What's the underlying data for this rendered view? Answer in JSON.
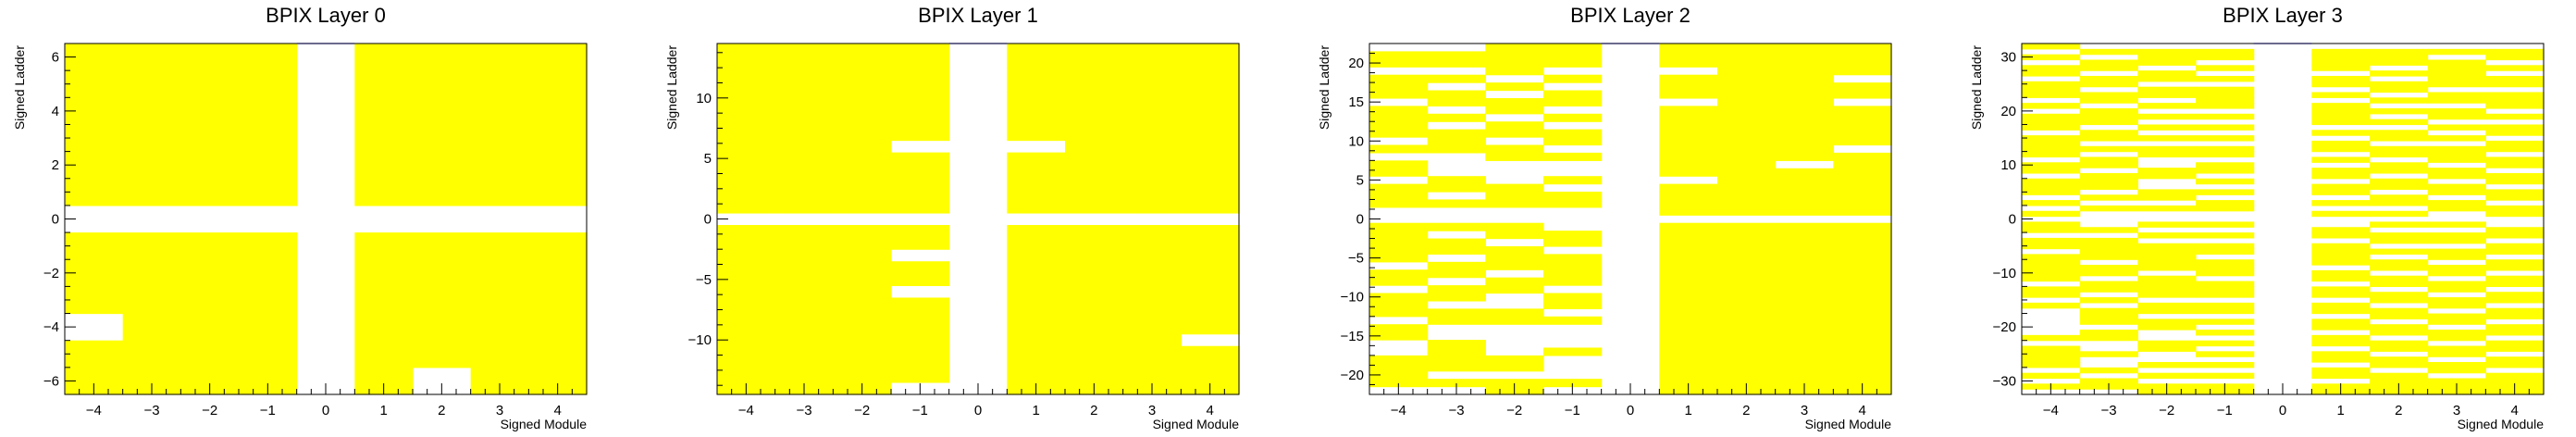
{
  "colors": {
    "filled": "#ffff00",
    "empty": "#ffffff",
    "axis": "#000000",
    "frame": "#6a6a8e"
  },
  "chart_data": [
    {
      "type": "heatmap",
      "title": "BPIX Layer 0",
      "xlabel": "Signed Module",
      "ylabel": "Signed Ladder",
      "xlim": [
        -4.5,
        4.5
      ],
      "ylim": [
        -6.5,
        6.5
      ],
      "xticks": [
        -4,
        -3,
        -2,
        -1,
        0,
        1,
        2,
        3,
        4
      ],
      "yticks": [
        -6,
        -4,
        -2,
        0,
        2,
        4,
        6
      ],
      "xtick_labels": [
        "−4",
        "−3",
        "−2",
        "−1",
        "0",
        "1",
        "2",
        "3",
        "4"
      ],
      "ytick_labels": [
        "−6",
        "−4",
        "−2",
        "0",
        "2",
        "4",
        "6"
      ],
      "empty_columns": [
        0
      ],
      "empty_rows": [
        0
      ],
      "empty_cells": [
        [
          -4,
          -4
        ],
        [
          2,
          -6
        ]
      ]
    },
    {
      "type": "heatmap",
      "title": "BPIX Layer 1",
      "xlabel": "Signed Module",
      "ylabel": "Signed Ladder",
      "xlim": [
        -4.5,
        4.5
      ],
      "ylim": [
        -14.5,
        14.5
      ],
      "xticks": [
        -4,
        -3,
        -2,
        -1,
        0,
        1,
        2,
        3,
        4
      ],
      "yticks": [
        -10,
        -5,
        0,
        5,
        10
      ],
      "xtick_labels": [
        "−4",
        "−3",
        "−2",
        "−1",
        "0",
        "1",
        "2",
        "3",
        "4"
      ],
      "ytick_labels": [
        "−10",
        "−5",
        "0",
        "5",
        "10"
      ],
      "empty_columns": [
        0
      ],
      "empty_rows": [
        0
      ],
      "empty_cells": [
        [
          -1,
          6
        ],
        [
          1,
          6
        ],
        [
          -1,
          -3
        ],
        [
          -1,
          -6
        ],
        [
          4,
          -10
        ],
        [
          -1,
          -14
        ]
      ]
    },
    {
      "type": "heatmap",
      "title": "BPIX Layer 2",
      "xlabel": "Signed Module",
      "ylabel": "Signed Ladder",
      "xlim": [
        -4.5,
        4.5
      ],
      "ylim": [
        -22.5,
        22.5
      ],
      "xticks": [
        -4,
        -3,
        -2,
        -1,
        0,
        1,
        2,
        3,
        4
      ],
      "yticks": [
        -20,
        -15,
        -10,
        -5,
        0,
        5,
        10,
        15,
        20
      ],
      "xtick_labels": [
        "−4",
        "−3",
        "−2",
        "−1",
        "0",
        "1",
        "2",
        "3",
        "4"
      ],
      "ytick_labels": [
        "−20",
        "−15",
        "−10",
        "−5",
        "0",
        "5",
        "10",
        "15",
        "20"
      ],
      "empty_columns": [
        0
      ],
      "empty_rows": [
        0
      ],
      "empty_cells": [
        [
          -4,
          22
        ],
        [
          -4,
          19
        ],
        [
          -4,
          15
        ],
        [
          -4,
          10
        ],
        [
          -4,
          8
        ],
        [
          -4,
          5
        ],
        [
          -4,
          1
        ],
        [
          -4,
          -6
        ],
        [
          -4,
          -9
        ],
        [
          -4,
          -13
        ],
        [
          -4,
          -16
        ],
        [
          -4,
          -17
        ],
        [
          -4,
          -22
        ],
        [
          -3,
          22
        ],
        [
          -3,
          19
        ],
        [
          -3,
          17
        ],
        [
          -3,
          14
        ],
        [
          -3,
          12
        ],
        [
          -3,
          8
        ],
        [
          -3,
          7
        ],
        [
          -3,
          6
        ],
        [
          -3,
          3
        ],
        [
          -3,
          1
        ],
        [
          -3,
          -2
        ],
        [
          -3,
          -5
        ],
        [
          -3,
          -8
        ],
        [
          -3,
          -11
        ],
        [
          -3,
          -14
        ],
        [
          -3,
          -15
        ],
        [
          -3,
          -20
        ],
        [
          -3,
          -22
        ],
        [
          -2,
          18
        ],
        [
          -2,
          16
        ],
        [
          -2,
          13
        ],
        [
          -2,
          10
        ],
        [
          -2,
          7
        ],
        [
          -2,
          6
        ],
        [
          -2,
          5
        ],
        [
          -2,
          1
        ],
        [
          -2,
          -3
        ],
        [
          -2,
          -7
        ],
        [
          -2,
          -10
        ],
        [
          -2,
          -11
        ],
        [
          -2,
          -14
        ],
        [
          -2,
          -15
        ],
        [
          -2,
          -16
        ],
        [
          -2,
          -17
        ],
        [
          -2,
          -20
        ],
        [
          -1,
          19
        ],
        [
          -1,
          17
        ],
        [
          -1,
          14
        ],
        [
          -1,
          12
        ],
        [
          -1,
          9
        ],
        [
          -1,
          7
        ],
        [
          -1,
          6
        ],
        [
          -1,
          4
        ],
        [
          -1,
          1
        ],
        [
          -1,
          -1
        ],
        [
          -1,
          -4
        ],
        [
          -1,
          -9
        ],
        [
          -1,
          -12
        ],
        [
          -1,
          -14
        ],
        [
          -1,
          -15
        ],
        [
          -1,
          -16
        ],
        [
          -1,
          -18
        ],
        [
          -1,
          -19
        ],
        [
          -1,
          -20
        ],
        [
          -1,
          -22
        ],
        [
          1,
          19
        ],
        [
          1,
          15
        ],
        [
          1,
          5
        ],
        [
          3,
          7
        ],
        [
          4,
          18
        ],
        [
          4,
          15
        ],
        [
          4,
          9
        ]
      ]
    },
    {
      "type": "heatmap",
      "title": "BPIX Layer 3",
      "xlabel": "Signed Module",
      "ylabel": "Signed Ladder",
      "xlim": [
        -4.5,
        4.5
      ],
      "ylim": [
        -32.5,
        32.5
      ],
      "xticks": [
        -4,
        -3,
        -2,
        -1,
        0,
        1,
        2,
        3,
        4
      ],
      "yticks": [
        -30,
        -20,
        -10,
        0,
        10,
        20,
        30
      ],
      "xtick_labels": [
        "−4",
        "−3",
        "−2",
        "−1",
        "0",
        "1",
        "2",
        "3",
        "4"
      ],
      "ytick_labels": [
        "−30",
        "−20",
        "−10",
        "0",
        "10",
        "20",
        "30"
      ],
      "empty_columns": [
        0
      ],
      "empty_rows": [
        0
      ],
      "empty_cells": [
        [
          -4,
          31
        ],
        [
          -4,
          29
        ],
        [
          -4,
          26
        ],
        [
          -4,
          22
        ],
        [
          -4,
          20
        ],
        [
          -4,
          16
        ],
        [
          -4,
          11
        ],
        [
          -4,
          8
        ],
        [
          -4,
          4
        ],
        [
          -4,
          2
        ],
        [
          -4,
          -3
        ],
        [
          -4,
          -6
        ],
        [
          -4,
          -12
        ],
        [
          -4,
          -15
        ],
        [
          -4,
          -17
        ],
        [
          -4,
          -18
        ],
        [
          -4,
          -19
        ],
        [
          -4,
          -20
        ],
        [
          -4,
          -21
        ],
        [
          -4,
          -23
        ],
        [
          -4,
          -28
        ],
        [
          -4,
          -30
        ],
        [
          -4,
          -32
        ],
        [
          -3,
          32
        ],
        [
          -3,
          30
        ],
        [
          -3,
          27
        ],
        [
          -3,
          24
        ],
        [
          -3,
          21
        ],
        [
          -3,
          17
        ],
        [
          -3,
          14
        ],
        [
          -3,
          12
        ],
        [
          -3,
          9
        ],
        [
          -3,
          5
        ],
        [
          -3,
          3
        ],
        [
          -3,
          1
        ],
        [
          -3,
          -1
        ],
        [
          -3,
          -3
        ],
        [
          -3,
          -8
        ],
        [
          -3,
          -11
        ],
        [
          -3,
          -14
        ],
        [
          -3,
          -16
        ],
        [
          -3,
          -20
        ],
        [
          -3,
          -23
        ],
        [
          -3,
          -24
        ],
        [
          -3,
          -26
        ],
        [
          -3,
          -27
        ],
        [
          -3,
          -29
        ],
        [
          -3,
          -32
        ],
        [
          -2,
          32
        ],
        [
          -2,
          28
        ],
        [
          -2,
          25
        ],
        [
          -2,
          22
        ],
        [
          -2,
          20
        ],
        [
          -2,
          18
        ],
        [
          -2,
          16
        ],
        [
          -2,
          14
        ],
        [
          -2,
          11
        ],
        [
          -2,
          10
        ],
        [
          -2,
          7
        ],
        [
          -2,
          6
        ],
        [
          -2,
          3
        ],
        [
          -2,
          1
        ],
        [
          -2,
          -2
        ],
        [
          -2,
          -4
        ],
        [
          -2,
          -10
        ],
        [
          -2,
          -15
        ],
        [
          -2,
          -18
        ],
        [
          -2,
          -21
        ],
        [
          -2,
          -22
        ],
        [
          -2,
          -25
        ],
        [
          -2,
          -26
        ],
        [
          -2,
          -28
        ],
        [
          -2,
          -30
        ],
        [
          -1,
          32
        ],
        [
          -1,
          29
        ],
        [
          -1,
          27
        ],
        [
          -1,
          25
        ],
        [
          -1,
          20
        ],
        [
          -1,
          18
        ],
        [
          -1,
          16
        ],
        [
          -1,
          14
        ],
        [
          -1,
          11
        ],
        [
          -1,
          8
        ],
        [
          -1,
          6
        ],
        [
          -1,
          4
        ],
        [
          -1,
          1
        ],
        [
          -1,
          -2
        ],
        [
          -1,
          -4
        ],
        [
          -1,
          -7
        ],
        [
          -1,
          -11
        ],
        [
          -1,
          -15
        ],
        [
          -1,
          -18
        ],
        [
          -1,
          -20
        ],
        [
          -1,
          -22
        ],
        [
          -1,
          -24
        ],
        [
          -1,
          -26
        ],
        [
          -1,
          -28
        ],
        [
          -1,
          -30
        ],
        [
          1,
          32
        ],
        [
          1,
          27
        ],
        [
          1,
          24
        ],
        [
          1,
          22
        ],
        [
          1,
          17
        ],
        [
          1,
          15
        ],
        [
          1,
          12
        ],
        [
          1,
          10
        ],
        [
          1,
          7
        ],
        [
          1,
          4
        ],
        [
          1,
          2
        ],
        [
          1,
          -1
        ],
        [
          1,
          -4
        ],
        [
          1,
          -9
        ],
        [
          1,
          -12
        ],
        [
          1,
          -15
        ],
        [
          1,
          -18
        ],
        [
          1,
          -21
        ],
        [
          1,
          -24
        ],
        [
          1,
          -27
        ],
        [
          1,
          -30
        ],
        [
          2,
          32
        ],
        [
          2,
          28
        ],
        [
          2,
          26
        ],
        [
          2,
          23
        ],
        [
          2,
          21
        ],
        [
          2,
          19
        ],
        [
          2,
          17
        ],
        [
          2,
          14
        ],
        [
          2,
          11
        ],
        [
          2,
          8
        ],
        [
          2,
          5
        ],
        [
          2,
          2
        ],
        [
          2,
          0
        ],
        [
          2,
          -2
        ],
        [
          2,
          -5
        ],
        [
          2,
          -7
        ],
        [
          2,
          -10
        ],
        [
          2,
          -13
        ],
        [
          2,
          -16
        ],
        [
          2,
          -19
        ],
        [
          2,
          -22
        ],
        [
          2,
          -25
        ],
        [
          2,
          -28
        ],
        [
          3,
          32
        ],
        [
          3,
          30
        ],
        [
          3,
          24
        ],
        [
          3,
          21
        ],
        [
          3,
          18
        ],
        [
          3,
          16
        ],
        [
          3,
          14
        ],
        [
          3,
          10
        ],
        [
          3,
          7
        ],
        [
          3,
          4
        ],
        [
          3,
          1
        ],
        [
          3,
          -2
        ],
        [
          3,
          -5
        ],
        [
          3,
          -8
        ],
        [
          3,
          -11
        ],
        [
          3,
          -14
        ],
        [
          3,
          -17
        ],
        [
          3,
          -20
        ],
        [
          3,
          -23
        ],
        [
          3,
          -26
        ],
        [
          3,
          -29
        ],
        [
          4,
          32
        ],
        [
          4,
          29
        ],
        [
          4,
          27
        ],
        [
          4,
          24
        ],
        [
          4,
          20
        ],
        [
          4,
          18
        ],
        [
          4,
          15
        ],
        [
          4,
          12
        ],
        [
          4,
          9
        ],
        [
          4,
          6
        ],
        [
          4,
          3
        ],
        [
          4,
          -1
        ],
        [
          4,
          -4
        ],
        [
          4,
          -7
        ],
        [
          4,
          -10
        ],
        [
          4,
          -13
        ],
        [
          4,
          -16
        ],
        [
          4,
          -19
        ],
        [
          4,
          -22
        ],
        [
          4,
          -25
        ],
        [
          4,
          -28
        ]
      ]
    }
  ]
}
